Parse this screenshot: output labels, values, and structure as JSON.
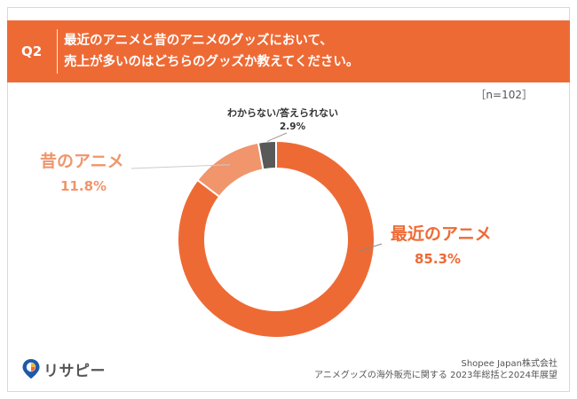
{
  "header": {
    "q_label": "Q2",
    "question_line1": "最近のアニメと昔のアニメのグッズにおいて、",
    "question_line2": "売上が多いのはどちらのグッズか教えてください。"
  },
  "sample_size": "［n=102］",
  "colors": {
    "accent": "#ee6a35",
    "recent": "#ee6a35",
    "old": "#f0956c",
    "unknown": "#595959"
  },
  "chart_data": {
    "type": "pie",
    "subtype": "donut",
    "categories": [
      "最近のアニメ",
      "昔のアニメ",
      "わからない/答えられない"
    ],
    "values": [
      85.3,
      11.8,
      2.9
    ],
    "value_labels": [
      "85.3%",
      "11.8%",
      "2.9%"
    ],
    "n": 102,
    "legend": "none"
  },
  "logo": {
    "text": "リサピー"
  },
  "source": {
    "line1": "Shopee Japan株式会社",
    "line2": "アニメグッズの海外販売に関する 2023年総括と2024年展望"
  }
}
